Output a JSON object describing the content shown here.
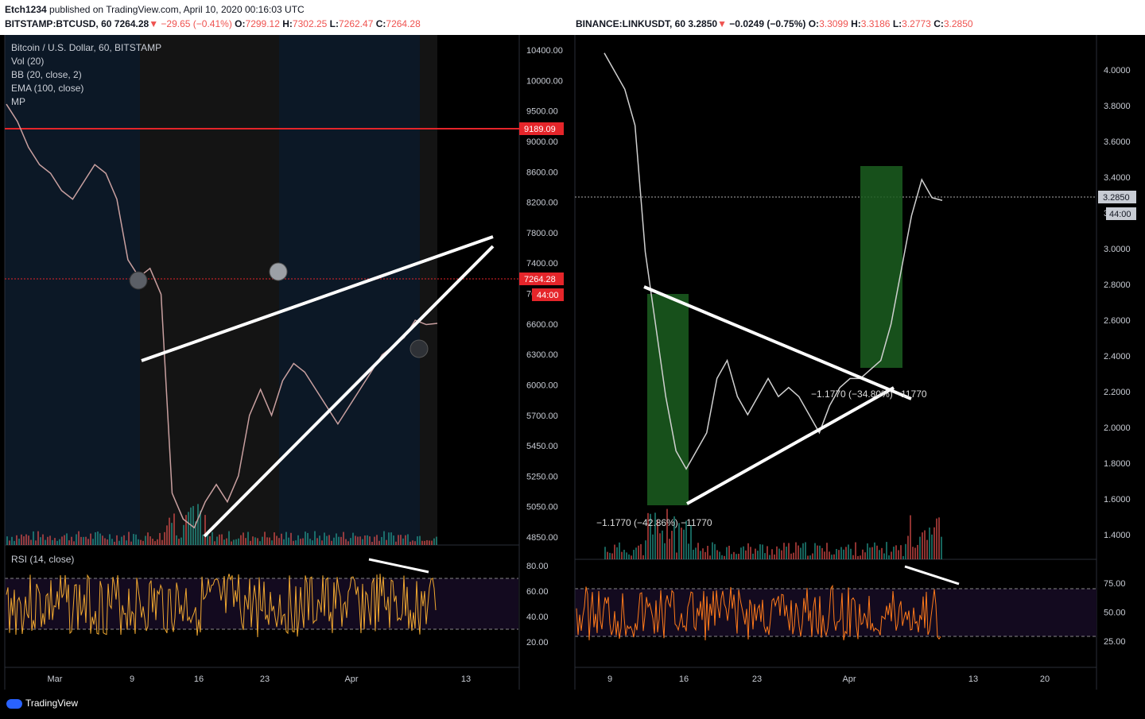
{
  "header": {
    "user": "Etch1234",
    "published": "published on TradingView.com, April 10, 2020 00:16:03 UTC"
  },
  "left": {
    "symbol": "BITSTAMP:BTCUSD, 60",
    "price": "7264.28",
    "change": "−29.65 (−0.41%)",
    "o": "7299.12",
    "h": "7302.25",
    "l": "7262.47",
    "c": "7264.28",
    "legend": [
      "Bitcoin / U.S. Dollar, 60, BITSTAMP",
      "Vol (20)",
      "BB (20, close, 2)",
      "EMA (100, close)",
      "MP"
    ],
    "rsi_label": "RSI (14, close)",
    "price_ticks": [
      "10400.00",
      "10000.00",
      "9500.00",
      "9000.00",
      "8600.00",
      "8200.00",
      "7800.00",
      "7400.00",
      "7000.00",
      "6600.00",
      "6300.00",
      "6000.00",
      "5700.00",
      "5450.00",
      "5250.00",
      "5050.00",
      "4850.00"
    ],
    "rsi_ticks": [
      "80.00",
      "60.00",
      "40.00",
      "20.00"
    ],
    "x_ticks": [
      "Mar",
      "9",
      "16",
      "23",
      "Apr",
      "13"
    ],
    "level_label": "9189.09",
    "last_label": "7264.28",
    "countdown": "44:00"
  },
  "right": {
    "symbol": "BINANCE:LINKUSDT, 60",
    "price": "3.2850",
    "change": "−0.0249 (−0.75%)",
    "o": "3.3099",
    "h": "3.3186",
    "l": "3.2773",
    "c": "3.2850",
    "price_ticks": [
      "4.0000",
      "3.8000",
      "3.6000",
      "3.4000",
      "3.2000",
      "3.0000",
      "2.8000",
      "2.6000",
      "2.4000",
      "2.2000",
      "2.0000",
      "1.8000",
      "1.6000",
      "1.4000"
    ],
    "rsi_ticks": [
      "75.00",
      "50.00",
      "25.00"
    ],
    "x_ticks": [
      "9",
      "16",
      "23",
      "Apr",
      "13",
      "20"
    ],
    "last_label": "3.2850",
    "countdown": "44:00",
    "measure1": "−1.1770 (−42.86%) −11770",
    "measure2": "−1.1770 (−34.80%) −11770"
  },
  "footer": {
    "brand": "TradingView"
  },
  "chart_data": [
    {
      "type": "line",
      "title": "Bitcoin / U.S. Dollar, 60, BITSTAMP",
      "series": [
        {
          "name": "Bitcoin / U.S. Dollar, 60, BITSTAMP",
          "values": [
            9800,
            9600,
            9300,
            9100,
            9000,
            8800,
            8700,
            8900,
            9100,
            9000,
            8700,
            8000,
            7800,
            7900,
            7600,
            5300,
            5000,
            4900,
            5200,
            5400,
            5200,
            5500,
            6200,
            6500,
            6200,
            6600,
            6800,
            6700,
            6500,
            6300,
            6100,
            6300,
            6500,
            6700,
            6900,
            7000,
            7100,
            7300,
            7250,
            7264
          ]
        }
      ],
      "ylim": [
        4700,
        10600
      ]
    },
    {
      "type": "line",
      "title": "BINANCE:LINKUSDT, 60",
      "series": [
        {
          "name": "BINANCE:LINKUSDT, 60",
          "values": [
            4.1,
            4.0,
            3.9,
            3.7,
            3.0,
            2.6,
            2.2,
            1.9,
            1.8,
            1.9,
            2.0,
            2.3,
            2.4,
            2.2,
            2.1,
            2.2,
            2.3,
            2.2,
            2.25,
            2.2,
            2.1,
            2.0,
            2.15,
            2.25,
            2.3,
            2.3,
            2.35,
            2.4,
            2.6,
            2.9,
            3.2,
            3.4,
            3.3,
            3.285
          ]
        }
      ],
      "ylim": [
        1.3,
        4.2
      ]
    }
  ]
}
